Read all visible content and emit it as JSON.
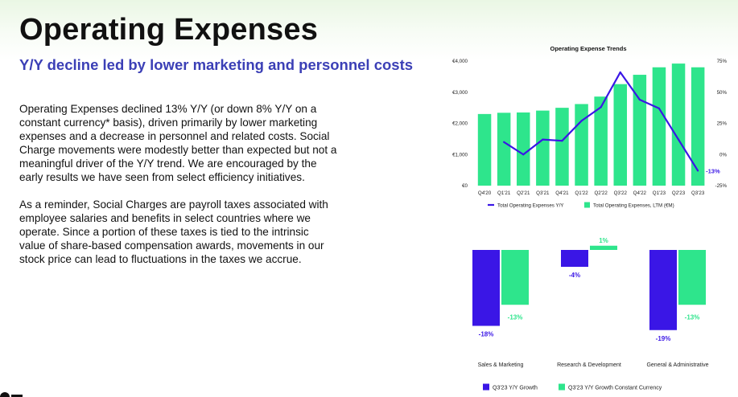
{
  "header": {
    "title": "Operating Expenses",
    "subtitle": "Y/Y decline led by lower marketing and personnel costs"
  },
  "body": {
    "paragraphs": [
      "Operating Expenses declined 13% Y/Y (or down 8% Y/Y on a constant currency* basis), driven primarily by lower marketing expenses and a decrease in personnel and related costs. Social Charge movements were modestly better than expected but not a meaningful driver of the Y/Y trend. We are encouraged by the early results we have seen from select efficiency initiatives.",
      "As a reminder, Social Charges are payroll taxes associated with employee salaries and benefits in select countries where we operate. Since a portion of these taxes is tied to the intrinsic value of share-based compensation awards, movements in our stock price can lead to fluctuations in the taxes we accrue."
    ]
  },
  "colors": {
    "purple": "#3a16e6",
    "green": "#2ee58c",
    "subtitle_blue": "#3b3fb6"
  },
  "chart_data": [
    {
      "type": "bar",
      "title": "Operating Expense Trends",
      "categories": [
        "Q4'20",
        "Q1'21",
        "Q2'21",
        "Q3'21",
        "Q4'21",
        "Q1'22",
        "Q2'22",
        "Q3'22",
        "Q4'22",
        "Q1'23",
        "Q2'23",
        "Q3'23"
      ],
      "series": [
        {
          "name": "Total Operating Expenses, LTM (€M)",
          "type": "bar",
          "axis": "left",
          "values": [
            2300,
            2340,
            2350,
            2410,
            2500,
            2620,
            2860,
            3260,
            3560,
            3800,
            3920,
            3800
          ]
        },
        {
          "name": "Total Operating Expenses Y/Y",
          "type": "line",
          "axis": "right",
          "values": [
            null,
            10,
            0,
            12,
            11,
            27,
            38,
            66,
            44,
            37,
            12,
            -13
          ]
        }
      ],
      "left_axis": {
        "ylim": [
          0,
          4000
        ],
        "ticks": [
          "€0",
          "€1,000",
          "€2,000",
          "€3,000",
          "€4,000"
        ]
      },
      "right_axis": {
        "ylim": [
          -25,
          75
        ],
        "ticks": [
          "-25%",
          "0%",
          "25%",
          "50%",
          "75%"
        ]
      },
      "annotation": "-13%",
      "legend_position": "bottom",
      "grid": false
    },
    {
      "type": "bar",
      "categories": [
        "Sales & Marketing",
        "Research & Development",
        "General & Administrative"
      ],
      "series": [
        {
          "name": "Q3'23 Y/Y Growth",
          "values": [
            -18,
            -4,
            -19
          ],
          "labels": [
            "-18%",
            "-4%",
            "-19%"
          ]
        },
        {
          "name": "Q3'23 Y/Y Growth Constant Currency",
          "values": [
            -13,
            1,
            -13
          ],
          "labels": [
            "-13%",
            "1%",
            "-13%"
          ]
        }
      ],
      "legend_position": "bottom",
      "grid": false
    }
  ]
}
